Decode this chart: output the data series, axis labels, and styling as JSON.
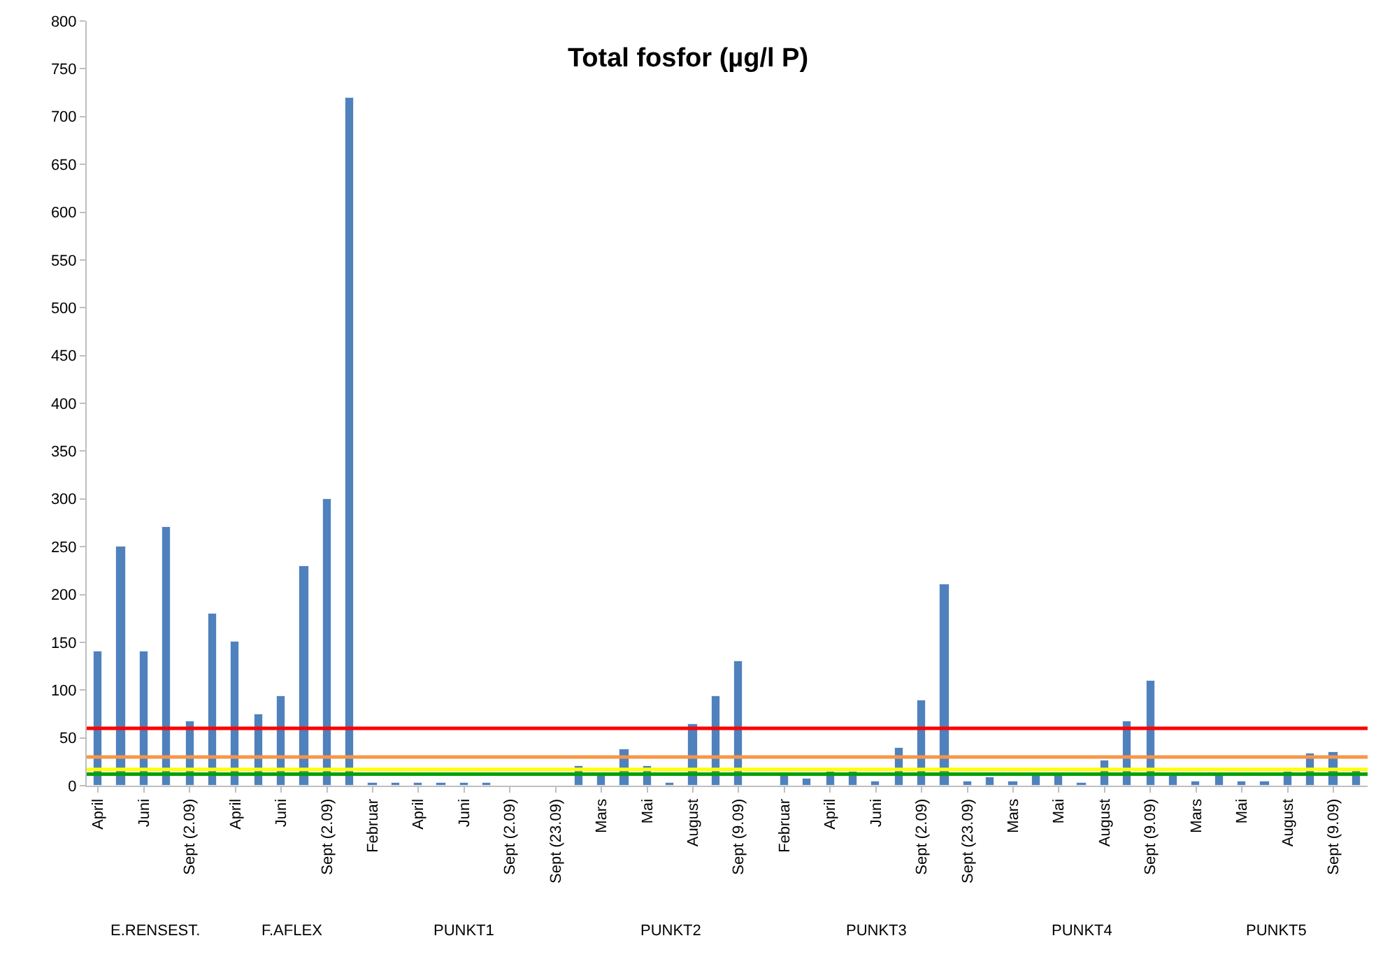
{
  "chart_data": {
    "type": "bar",
    "title": "Total fosfor (µg/l P)",
    "categories": [
      "April",
      null,
      "Juni",
      null,
      "Sept (2.09)",
      null,
      "April",
      null,
      "Juni",
      null,
      "Sept (2.09)",
      null,
      "Februar",
      null,
      "April",
      null,
      "Juni",
      null,
      "Sept (2.09)",
      null,
      "Sept (23.09)",
      null,
      "Mars",
      null,
      "Mai",
      null,
      "August",
      null,
      "Sept (9.09)",
      null,
      "Februar",
      null,
      "April",
      null,
      "Juni",
      null,
      "Sept (2.09)",
      null,
      "Sept (23.09)",
      null,
      "Mars",
      null,
      "Mai",
      null,
      "August",
      null,
      "Sept (9.09)",
      null,
      "Mars",
      null,
      "Mai",
      null,
      "August",
      null,
      "Sept (9.09)",
      null
    ],
    "annotations": [
      "E.RENSEST.",
      "F.AFLEX",
      "PUNKT1",
      "PUNKT2",
      "PUNKT3",
      "PUNKT4",
      "PUNKT5"
    ],
    "values": [
      140,
      250,
      140,
      270,
      67,
      180,
      150,
      75,
      93,
      230,
      300,
      720,
      3,
      3,
      3,
      3,
      3,
      3,
      null,
      null,
      null,
      20,
      12,
      38,
      21,
      3,
      65,
      93,
      130,
      null,
      10,
      7,
      15,
      15,
      5,
      40,
      89,
      210,
      5,
      9,
      5,
      11,
      11,
      3,
      27,
      67,
      110,
      11,
      4,
      11,
      5,
      5,
      15,
      33,
      35,
      16
    ],
    "color": "#4f81bd",
    "ylim": [
      0,
      800
    ],
    "yticks": [
      0,
      50,
      100,
      150,
      200,
      250,
      300,
      350,
      400,
      450,
      500,
      550,
      600,
      650,
      700,
      750,
      800
    ],
    "ref_lines": [
      {
        "axis": "y",
        "value": 60,
        "color": "#ff0000"
      },
      {
        "axis": "y",
        "value": 30,
        "color": "#f79646"
      },
      {
        "axis": "y",
        "value": 17,
        "color": "#ffff00"
      },
      {
        "axis": "y",
        "value": 12,
        "color": "#00a000"
      }
    ]
  }
}
